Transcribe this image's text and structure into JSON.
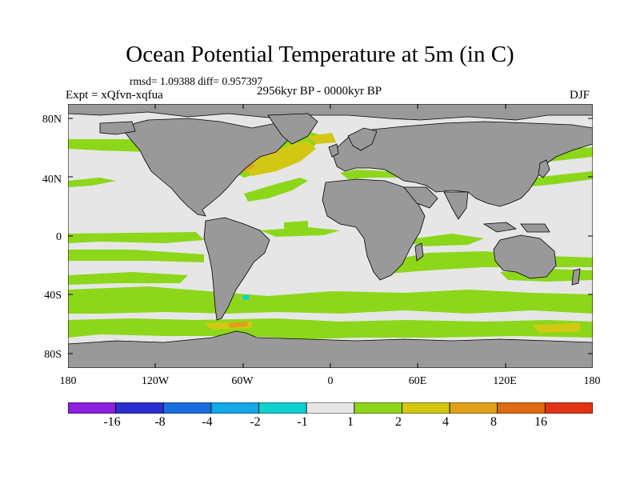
{
  "title": "Ocean Potential Temperature at 5m (in C)",
  "stats": "rmsd= 1.09388 diff= 0.957397",
  "experiment": "Expt = xQfvn-xqfua",
  "period": "2956kyr BP - 0000kyr BP",
  "season": "DJF",
  "y_axis_labels": [
    "80N",
    "40N",
    "0",
    "40S",
    "80S"
  ],
  "x_axis_labels": [
    "180",
    "120W",
    "60W",
    "0",
    "60E",
    "120E",
    "180"
  ],
  "colorbar": {
    "colors": [
      "#8a1fe0",
      "#2d2fd0",
      "#1a6fe0",
      "#14a8e8",
      "#10d0d0",
      "#e6e6e6",
      "#8cd71a",
      "#d2c814",
      "#e0a01a",
      "#e06a14",
      "#e03214"
    ],
    "labels": [
      "-16",
      "-8",
      "-4",
      "-2",
      "-1",
      "1",
      "2",
      "4",
      "8",
      "16"
    ]
  },
  "map_colors": {
    "land": "#999999",
    "ocean_neutral": "#e6e6e6",
    "warm_1_2": "#8cd71a",
    "warm_2_4": "#d2c814",
    "warm_4_8": "#e0a01a",
    "cool": "#10d0d0"
  }
}
